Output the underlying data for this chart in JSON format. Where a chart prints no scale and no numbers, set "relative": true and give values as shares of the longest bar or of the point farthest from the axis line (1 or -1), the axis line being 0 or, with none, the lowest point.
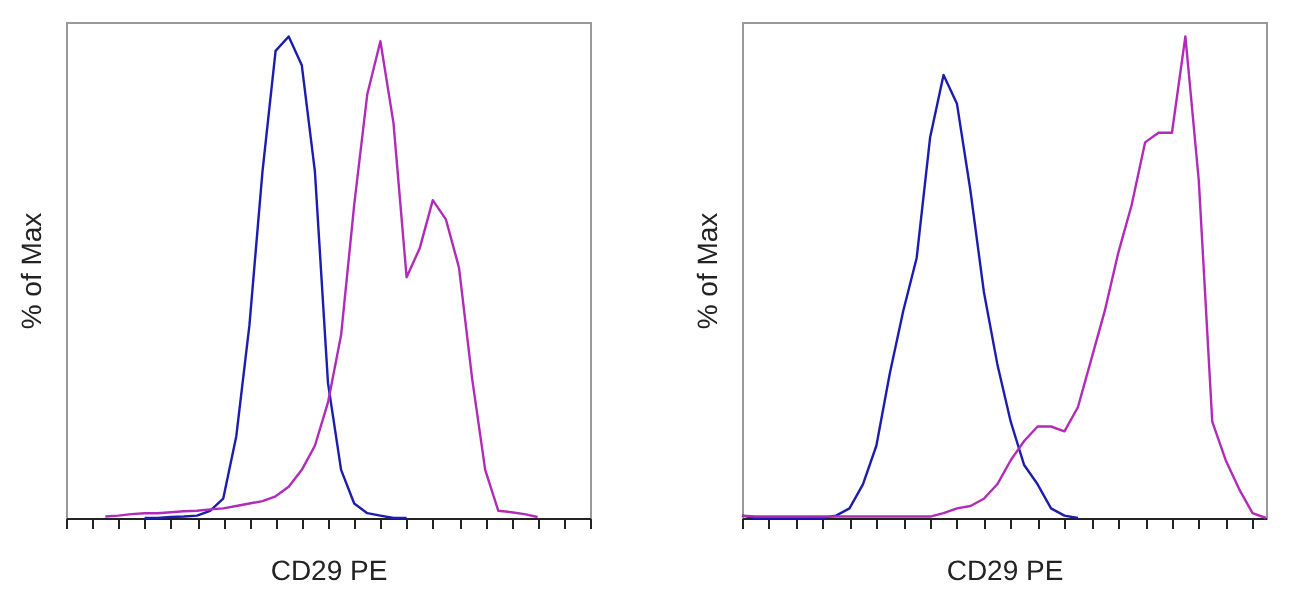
{
  "chart_data": [
    {
      "type": "line",
      "xlabel": "CD29 PE",
      "ylabel": "% of Max",
      "relative": true,
      "tick_labels": false,
      "categories": [
        null,
        null,
        null,
        null,
        null,
        null,
        null,
        null,
        null,
        null,
        null,
        null,
        null,
        null,
        null,
        null,
        null,
        null,
        null,
        null,
        null,
        null,
        null,
        null,
        null,
        null,
        null,
        null,
        null,
        null,
        null,
        null,
        null,
        null,
        null,
        null,
        null,
        null,
        null,
        null,
        null
      ],
      "series": [
        {
          "color": "#1c1cae",
          "values": [
            null,
            null,
            null,
            null,
            null,
            null,
            0,
            0,
            0.002,
            0.003,
            0.005,
            0.015,
            0.04,
            0.17,
            0.4,
            0.72,
            0.97,
            1.0,
            0.94,
            0.72,
            0.28,
            0.1,
            0.03,
            0.01,
            0.005,
            0,
            0,
            null,
            null,
            null,
            null,
            null,
            null,
            null,
            null,
            null,
            null,
            null,
            null,
            null,
            null
          ]
        },
        {
          "color": "#b02cb8",
          "values": [
            null,
            null,
            null,
            0.003,
            0.005,
            0.008,
            0.01,
            0.01,
            0.012,
            0.014,
            0.015,
            0.018,
            0.02,
            0.025,
            0.03,
            0.035,
            0.045,
            0.065,
            0.1,
            0.15,
            0.24,
            0.38,
            0.65,
            0.88,
            0.99,
            0.82,
            0.5,
            0.56,
            0.66,
            0.62,
            0.52,
            0.29,
            0.1,
            0.015,
            0.012,
            0.008,
            0.002,
            null,
            null,
            null,
            null
          ]
        }
      ]
    },
    {
      "type": "line",
      "xlabel": "CD29 PE",
      "ylabel": "% of Max",
      "relative": true,
      "tick_labels": false,
      "categories": [
        null,
        null,
        null,
        null,
        null,
        null,
        null,
        null,
        null,
        null,
        null,
        null,
        null,
        null,
        null,
        null,
        null,
        null,
        null,
        null,
        null,
        null,
        null,
        null,
        null,
        null,
        null,
        null,
        null,
        null,
        null,
        null,
        null,
        null,
        null,
        null,
        null,
        null,
        null,
        null
      ],
      "series": [
        {
          "color": "#1c1cae",
          "values": [
            0.005,
            0,
            0,
            0,
            0,
            0,
            0,
            0.005,
            0.02,
            0.07,
            0.15,
            0.3,
            0.43,
            0.54,
            0.79,
            0.92,
            0.86,
            0.68,
            0.47,
            0.32,
            0.2,
            0.11,
            0.07,
            0.02,
            0.005,
            0,
            null,
            null,
            null,
            null,
            null,
            null,
            null,
            null,
            null,
            null,
            null,
            null,
            null,
            null
          ]
        },
        {
          "color": "#b02cb8",
          "values": [
            0.005,
            0.003,
            0.003,
            0.003,
            0.003,
            0.003,
            0.003,
            0.003,
            0.003,
            0.003,
            0.003,
            0.003,
            0.003,
            0.003,
            0.003,
            0.01,
            0.02,
            0.025,
            0.04,
            0.07,
            0.12,
            0.16,
            0.19,
            0.19,
            0.18,
            0.23,
            0.33,
            0.43,
            0.55,
            0.65,
            0.78,
            0.8,
            0.8,
            1.0,
            0.7,
            0.2,
            0.12,
            0.06,
            0.01,
            0
          ]
        }
      ]
    }
  ]
}
